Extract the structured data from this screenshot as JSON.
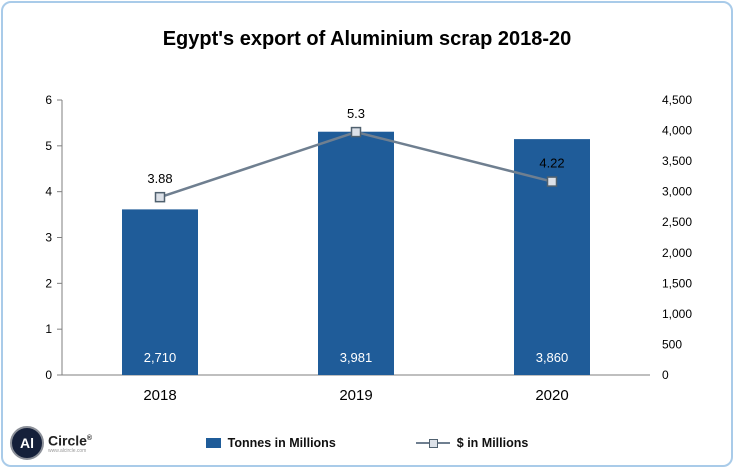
{
  "chart_data": {
    "type": "combo",
    "title": "Egypt's export of Aluminium scrap 2018-20",
    "categories": [
      "2018",
      "2019",
      "2020"
    ],
    "series": [
      {
        "name": "Tonnes in Millions",
        "type": "bar",
        "axis": "right",
        "values": [
          2710,
          3981,
          3860
        ],
        "labels": [
          "2,710",
          "3,981",
          "3,860"
        ],
        "color": "#1F5C99"
      },
      {
        "name": "$ in Millions",
        "type": "line",
        "axis": "left",
        "values": [
          3.88,
          5.3,
          4.22
        ],
        "labels": [
          "3.88",
          "5.3",
          "4.22"
        ],
        "color": "#6F7F90",
        "marker_fill": "#DCE1E8",
        "marker_stroke": "#50616F"
      }
    ],
    "left_axis": {
      "min": 0,
      "max": 6,
      "step": 1,
      "ticks": [
        "0",
        "1",
        "2",
        "3",
        "4",
        "5",
        "6"
      ]
    },
    "right_axis": {
      "min": 0,
      "max": 4500,
      "step": 500,
      "ticks": [
        "0",
        "500",
        "1,000",
        "1,500",
        "2,000",
        "2,500",
        "3,000",
        "3,500",
        "4,000",
        "4,500"
      ]
    },
    "legend_position": "bottom",
    "grid": false
  },
  "logo": {
    "circle_text": "Al",
    "name": "Circle",
    "registered": "®",
    "tagline": "www.alcircle.com"
  },
  "frame": {
    "border_color": "#A9CBE9"
  }
}
